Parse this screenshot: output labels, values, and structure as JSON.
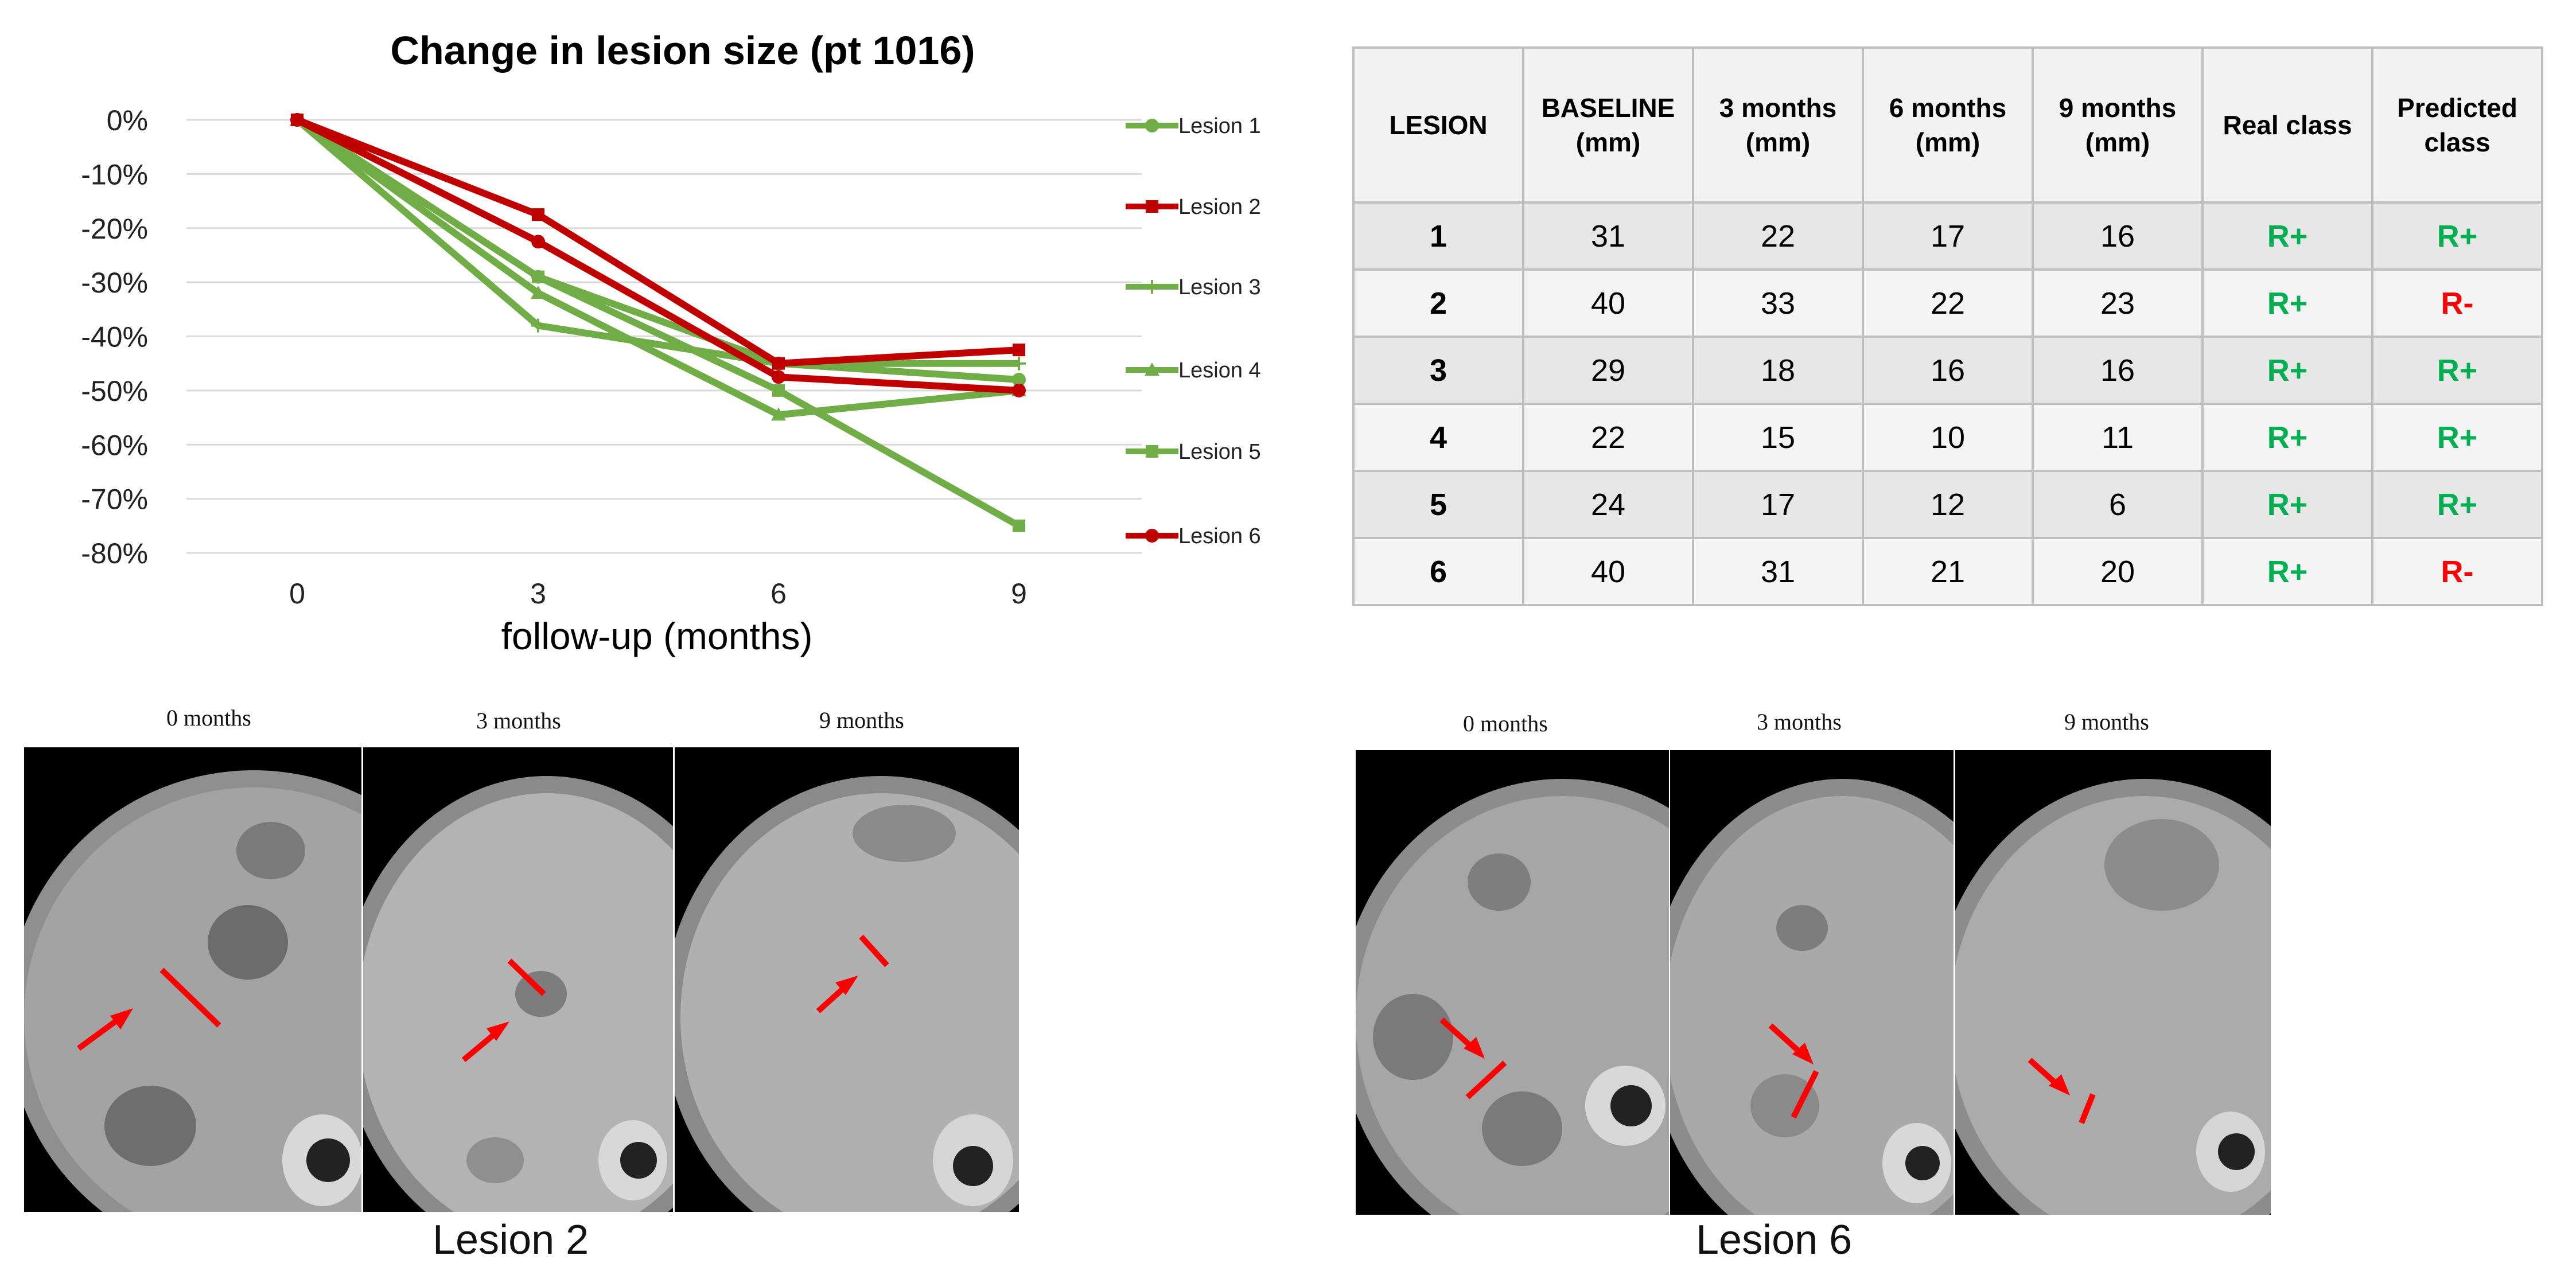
{
  "chart_data": {
    "type": "line",
    "title": "Change in lesion size (pt 1016)",
    "xlabel": "follow-up (months)",
    "ylabel": "",
    "x": [
      0,
      3,
      6,
      9
    ],
    "x_tick_labels": [
      "0",
      "3",
      "6",
      "9"
    ],
    "ylim": [
      -80,
      0
    ],
    "y_tick_labels": [
      "0%",
      "-10%",
      "-20%",
      "-30%",
      "-40%",
      "-50%",
      "-60%",
      "-70%",
      "-80%"
    ],
    "grid": "horizontal",
    "legend_position": "right",
    "series": [
      {
        "name": "Lesion 1",
        "color": "#70ad47",
        "marker": "circle",
        "values": [
          0,
          -29,
          -45,
          -48
        ]
      },
      {
        "name": "Lesion 2",
        "color": "#c00000",
        "marker": "square",
        "values": [
          0,
          -17.5,
          -45,
          -42.5
        ]
      },
      {
        "name": "Lesion 3",
        "color": "#70ad47",
        "marker": "plus",
        "values": [
          0,
          -38,
          -45,
          -45
        ]
      },
      {
        "name": "Lesion 4",
        "color": "#70ad47",
        "marker": "triangle",
        "values": [
          0,
          -32,
          -54.5,
          -50
        ]
      },
      {
        "name": "Lesion 5",
        "color": "#70ad47",
        "marker": "square",
        "values": [
          0,
          -29,
          -50,
          -75
        ]
      },
      {
        "name": "Lesion 6",
        "color": "#c00000",
        "marker": "circle",
        "values": [
          0,
          -22.5,
          -47.5,
          -50
        ]
      }
    ]
  },
  "table": {
    "headers": [
      "LESION",
      "BASELINE\n(mm)",
      "3 months\n(mm)",
      "6 months\n(mm)",
      "9 months\n(mm)",
      "Real class",
      "Predicted\nclass"
    ],
    "rows": [
      {
        "lesion": "1",
        "baseline": "31",
        "m3": "22",
        "m6": "17",
        "m9": "16",
        "real": "R+",
        "predicted": "R+"
      },
      {
        "lesion": "2",
        "baseline": "40",
        "m3": "33",
        "m6": "22",
        "m9": "23",
        "real": "R+",
        "predicted": "R-"
      },
      {
        "lesion": "3",
        "baseline": "29",
        "m3": "18",
        "m6": "16",
        "m9": "16",
        "real": "R+",
        "predicted": "R+"
      },
      {
        "lesion": "4",
        "baseline": "22",
        "m3": "15",
        "m6": "10",
        "m9": "11",
        "real": "R+",
        "predicted": "R+"
      },
      {
        "lesion": "5",
        "baseline": "24",
        "m3": "17",
        "m6": "12",
        "m9": "6",
        "real": "R+",
        "predicted": "R+"
      },
      {
        "lesion": "6",
        "baseline": "40",
        "m3": "31",
        "m6": "21",
        "m9": "20",
        "real": "R+",
        "predicted": "R-"
      }
    ],
    "colors": {
      "positive": "#00b050",
      "negative": "#ff0000"
    }
  },
  "ct_panels": {
    "left": {
      "labels": [
        "0 months",
        "3 months",
        "9 months"
      ],
      "caption": "Lesion 2"
    },
    "right": {
      "labels": [
        "0 months",
        "3 months",
        "9 months"
      ],
      "caption": "Lesion 6"
    }
  }
}
